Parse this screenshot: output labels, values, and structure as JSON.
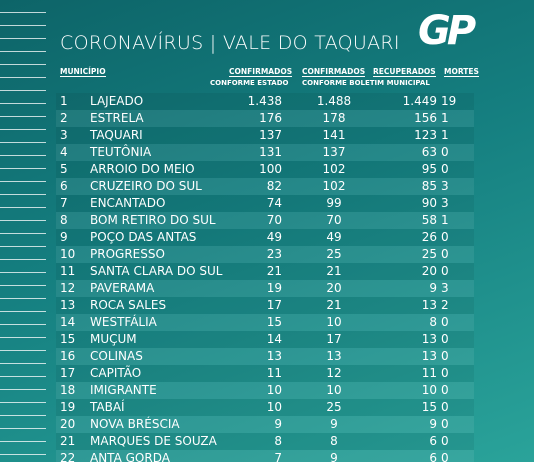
{
  "header": {
    "title": "CORONAVÍRUS | VALE DO TAQUARI",
    "logo": "GP"
  },
  "table": {
    "columns": [
      "MUNICÍPIO",
      "CONFIRMADOS",
      "CONFIRMADOS",
      "RECUPERADOS",
      "MORTES"
    ],
    "subheaders": [
      "CONFORME ESTADO",
      "CONFORME BOLETIM MUNICIPAL"
    ],
    "rows": [
      [
        "1",
        "LAJEADO",
        "1.438",
        "1.488",
        "1.449",
        "19"
      ],
      [
        "2",
        "ESTRELA",
        "176",
        "178",
        "156",
        "1"
      ],
      [
        "3",
        "TAQUARI",
        "137",
        "141",
        "123",
        "1"
      ],
      [
        "4",
        "TEUTÔNIA",
        "131",
        "137",
        "63",
        "0"
      ],
      [
        "5",
        "ARROIO DO MEIO",
        "100",
        "102",
        "95",
        "0"
      ],
      [
        "6",
        "CRUZEIRO DO SUL",
        "82",
        "102",
        "85",
        "3"
      ],
      [
        "7",
        "ENCANTADO",
        "74",
        "99",
        "90",
        "3"
      ],
      [
        "8",
        "BOM RETIRO DO SUL",
        "70",
        "70",
        "58",
        "1"
      ],
      [
        "9",
        "POÇO DAS ANTAS",
        "49",
        "49",
        "26",
        "0"
      ],
      [
        "10",
        "PROGRESSO",
        "23",
        "25",
        "25",
        "0"
      ],
      [
        "11",
        "SANTA CLARA DO SUL",
        "21",
        "21",
        "20",
        "0"
      ],
      [
        "12",
        "PAVERAMA",
        "19",
        "20",
        "9",
        "3"
      ],
      [
        "13",
        "ROCA SALES",
        "17",
        "21",
        "13",
        "2"
      ],
      [
        "14",
        "WESTFÁLIA",
        "15",
        "10",
        "8",
        "0"
      ],
      [
        "15",
        "MUÇUM",
        "14",
        "17",
        "13",
        "0"
      ],
      [
        "16",
        "COLINAS",
        "13",
        "13",
        "13",
        "0"
      ],
      [
        "17",
        "CAPITÃO",
        "11",
        "12",
        "11",
        "0"
      ],
      [
        "18",
        "IMIGRANTE",
        "10",
        "10",
        "10",
        "0"
      ],
      [
        "19",
        "TABAÍ",
        "10",
        "25",
        "15",
        "0"
      ],
      [
        "20",
        "NOVA BRÉSCIA",
        "9",
        "9",
        "9",
        "0"
      ],
      [
        "21",
        "MARQUES DE SOUZA",
        "8",
        "8",
        "6",
        "0"
      ],
      [
        "22",
        "ANTA GORDA",
        "7",
        "9",
        "6",
        "0"
      ]
    ]
  }
}
